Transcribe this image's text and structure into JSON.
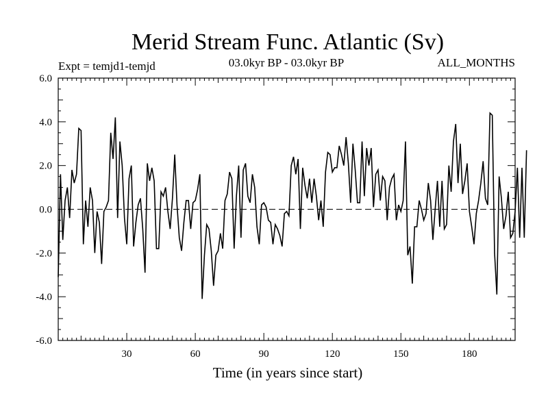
{
  "chart_data": {
    "type": "line",
    "title": "Merid Stream Func. Atlantic (Sv)",
    "subtitle_left": "Expt = temjd1-temjd",
    "subtitle_center": "03.0kyr BP - 03.0kyr BP",
    "subtitle_right": "ALL_MONTHS",
    "xlabel": "Time (in years since start)",
    "ylabel": "",
    "xlim": [
      0,
      200
    ],
    "ylim": [
      -6.0,
      6.0
    ],
    "x_ticks": [
      30,
      60,
      90,
      120,
      150,
      180
    ],
    "x_tick_labels": [
      "30",
      "60",
      "90",
      "120",
      "150",
      "180"
    ],
    "y_ticks": [
      -6,
      -4,
      -2,
      0,
      2,
      4,
      6
    ],
    "y_tick_labels": [
      "-6.0",
      "-4.0",
      "-2.0",
      "0.0",
      "2.0",
      "4.0",
      "6.0"
    ],
    "zero_line": "dashed",
    "series": [
      {
        "name": "temjd1-temjd",
        "x0": 0,
        "dx": 1,
        "values": [
          -3.1,
          1.6,
          -1.4,
          0.4,
          1.0,
          -0.4,
          1.8,
          1.2,
          1.6,
          3.7,
          3.6,
          -1.6,
          0.4,
          -0.8,
          1.0,
          0.4,
          -2.0,
          -0.1,
          -0.6,
          -2.5,
          -0.1,
          0.1,
          0.4,
          3.5,
          2.3,
          4.2,
          -0.4,
          3.1,
          2.0,
          -0.4,
          -1.6,
          1.4,
          2.0,
          -1.7,
          -0.6,
          0.2,
          0.5,
          -0.9,
          -2.9,
          2.1,
          1.3,
          1.9,
          1.3,
          -1.8,
          -1.8,
          0.8,
          0.6,
          1.0,
          -0.1,
          -0.9,
          0.5,
          2.5,
          0.2,
          -1.3,
          -1.9,
          -0.6,
          0.4,
          0.4,
          -0.9,
          0.3,
          0.4,
          0.9,
          1.6,
          -4.1,
          -2.1,
          -0.7,
          -0.9,
          -1.9,
          -3.5,
          -2.1,
          -1.9,
          -1.1,
          -1.8,
          0.4,
          0.7,
          1.7,
          1.4,
          -1.8,
          0.6,
          2.0,
          -1.3,
          1.8,
          2.1,
          0.6,
          0.3,
          1.6,
          1.0,
          -0.8,
          -1.6,
          0.2,
          0.3,
          0.1,
          -0.5,
          -0.6,
          -1.6,
          -0.7,
          -0.9,
          -1.2,
          -1.7,
          -0.2,
          -0.1,
          -0.3,
          2.0,
          2.4,
          1.6,
          2.3,
          -0.9,
          1.9,
          1.1,
          0.5,
          1.4,
          0.3,
          1.4,
          0.6,
          -0.5,
          0.4,
          -0.8,
          1.7,
          2.6,
          2.5,
          1.7,
          1.9,
          1.9,
          2.9,
          2.5,
          2.0,
          3.3,
          2.1,
          0.3,
          3.0,
          1.8,
          0.3,
          0.3,
          3.1,
          0.6,
          2.8,
          2.0,
          2.8,
          0.1,
          1.6,
          1.8,
          0.4,
          1.5,
          1.3,
          -0.5,
          1.0,
          1.4,
          1.6,
          -0.5,
          0.2,
          -0.1,
          0.4,
          3.1,
          -2.1,
          -1.7,
          -3.4,
          -0.8,
          -0.8,
          0.4,
          0.0,
          -0.5,
          -0.2,
          1.2,
          0.4,
          -1.4,
          0.0,
          1.3,
          -0.8,
          1.3,
          -0.9,
          -0.7,
          2.0,
          0.8,
          3.1,
          3.9,
          1.2,
          3.0,
          0.7,
          1.3,
          2.1,
          -0.1,
          -0.8,
          -1.6,
          -0.2,
          0.4,
          1.2,
          2.2,
          0.5,
          0.2,
          4.4,
          4.3,
          -2.0,
          -3.9,
          1.5,
          0.5,
          -0.9,
          -0.3,
          0.8,
          -1.3,
          -1.1,
          -0.1,
          1.9,
          -1.3,
          1.9,
          -1.3,
          2.7
        ]
      }
    ]
  }
}
